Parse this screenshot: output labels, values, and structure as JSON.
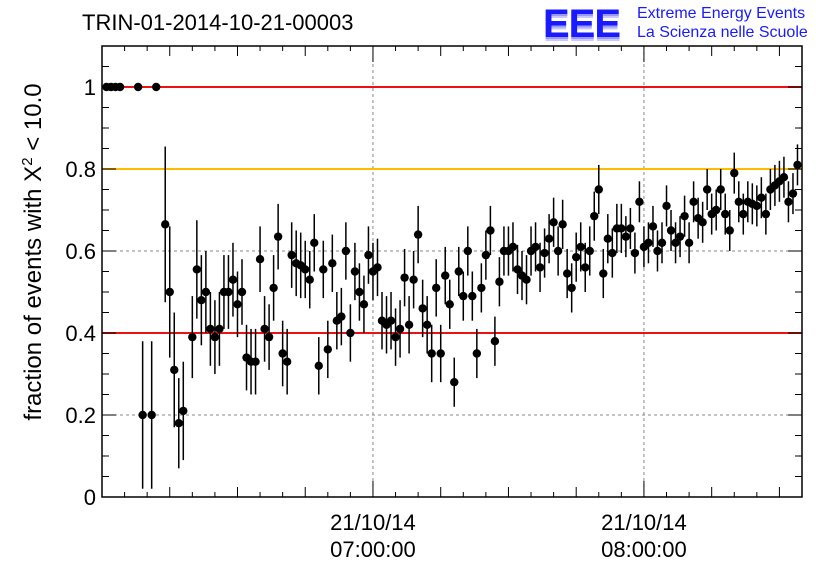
{
  "header": {
    "run_id": "TRIN-01-2014-10-21-00003",
    "logo_mark": "EEE",
    "logo_line1": "Extreme Energy Events",
    "logo_line2": "La Scienza nelle Scuole"
  },
  "axes": {
    "ylabel_prefix": "fraction of events with ",
    "ylabel_chi": "X",
    "ylabel_exp": "2",
    "ylabel_suffix": " < 10.0"
  },
  "colors": {
    "red_line": "#ee1111",
    "yellow_line": "#ffbb00",
    "points": "#000000",
    "logo_blue": "#1a1aff",
    "grid": "#888888"
  },
  "chart_data": {
    "type": "scatter",
    "title": "TRIN-01-2014-10-21-00003",
    "ylabel": "fraction of events with X^2 < 10.0",
    "xlabel": "",
    "x_format": "time (dd/mm/yy hh:mm:ss)",
    "xlim": [
      "21/10/14 06:00:00",
      "21/10/14 08:35:00"
    ],
    "ylim": [
      0,
      1.1
    ],
    "yticks": [
      0,
      0.2,
      0.4,
      0.6,
      0.8,
      1
    ],
    "ytick_labels": [
      "0",
      "0.2",
      "0.4",
      "0.6",
      "0.8",
      "1"
    ],
    "xtick_labels": [
      {
        "date": "21/10/14",
        "time": "07:00:00",
        "at": "21/10/14 07:00:00"
      },
      {
        "date": "21/10/14",
        "time": "08:00:00",
        "at": "21/10/14 08:00:00"
      }
    ],
    "grid": true,
    "reference_lines": [
      {
        "y": 1.0,
        "color": "red"
      },
      {
        "y": 0.8,
        "color": "yellow"
      },
      {
        "y": 0.4,
        "color": "red"
      }
    ],
    "points": [
      [
        "06:01:00",
        1.0,
        0
      ],
      [
        "06:02:00",
        1.0,
        0
      ],
      [
        "06:03:00",
        1.0,
        0
      ],
      [
        "06:04:00",
        1.0,
        0
      ],
      [
        "06:08:00",
        1.0,
        0
      ],
      [
        "06:12:00",
        1.0,
        0
      ],
      [
        "06:09:00",
        0.2,
        0.18
      ],
      [
        "06:11:00",
        0.2,
        0.18
      ],
      [
        "06:14:00",
        0.665,
        0.19
      ],
      [
        "06:15:00",
        0.5,
        0.16
      ],
      [
        "06:16:00",
        0.31,
        0.14
      ],
      [
        "06:17:00",
        0.18,
        0.11
      ],
      [
        "06:18:00",
        0.21,
        0.12
      ],
      [
        "06:20:00",
        0.39,
        0.1
      ],
      [
        "06:21:00",
        0.555,
        0.12
      ],
      [
        "06:22:00",
        0.48,
        0.11
      ],
      [
        "06:23:00",
        0.5,
        0.1
      ],
      [
        "06:24:00",
        0.41,
        0.09
      ],
      [
        "06:25:00",
        0.39,
        0.09
      ],
      [
        "06:26:00",
        0.41,
        0.09
      ],
      [
        "06:27:00",
        0.5,
        0.09
      ],
      [
        "06:28:00",
        0.5,
        0.09
      ],
      [
        "06:29:00",
        0.53,
        0.09
      ],
      [
        "06:30:00",
        0.47,
        0.08
      ],
      [
        "06:31:00",
        0.5,
        0.08
      ],
      [
        "06:32:00",
        0.34,
        0.08
      ],
      [
        "06:33:00",
        0.33,
        0.08
      ],
      [
        "06:34:00",
        0.33,
        0.08
      ],
      [
        "06:35:00",
        0.58,
        0.08
      ],
      [
        "06:36:00",
        0.41,
        0.08
      ],
      [
        "06:37:00",
        0.39,
        0.08
      ],
      [
        "06:38:00",
        0.51,
        0.08
      ],
      [
        "06:39:00",
        0.635,
        0.08
      ],
      [
        "06:40:00",
        0.35,
        0.08
      ],
      [
        "06:41:00",
        0.33,
        0.08
      ],
      [
        "06:42:00",
        0.59,
        0.08
      ],
      [
        "06:43:00",
        0.57,
        0.08
      ],
      [
        "06:44:00",
        0.565,
        0.08
      ],
      [
        "06:45:00",
        0.555,
        0.07
      ],
      [
        "06:46:00",
        0.53,
        0.07
      ],
      [
        "06:47:00",
        0.62,
        0.07
      ],
      [
        "06:48:00",
        0.32,
        0.07
      ],
      [
        "06:49:00",
        0.555,
        0.07
      ],
      [
        "06:50:00",
        0.36,
        0.07
      ],
      [
        "06:51:00",
        0.57,
        0.07
      ],
      [
        "06:52:00",
        0.43,
        0.07
      ],
      [
        "06:53:00",
        0.44,
        0.07
      ],
      [
        "06:54:00",
        0.6,
        0.07
      ],
      [
        "06:55:00",
        0.4,
        0.07
      ],
      [
        "06:56:00",
        0.55,
        0.07
      ],
      [
        "06:57:00",
        0.5,
        0.07
      ],
      [
        "06:58:00",
        0.47,
        0.07
      ],
      [
        "06:59:00",
        0.59,
        0.07
      ],
      [
        "07:00:00",
        0.55,
        0.07
      ],
      [
        "07:01:00",
        0.56,
        0.07
      ],
      [
        "07:02:00",
        0.43,
        0.07
      ],
      [
        "07:03:00",
        0.42,
        0.07
      ],
      [
        "07:04:00",
        0.43,
        0.07
      ],
      [
        "07:05:00",
        0.39,
        0.07
      ],
      [
        "07:06:00",
        0.41,
        0.07
      ],
      [
        "07:07:00",
        0.535,
        0.07
      ],
      [
        "07:08:00",
        0.42,
        0.07
      ],
      [
        "07:09:00",
        0.53,
        0.07
      ],
      [
        "07:10:00",
        0.64,
        0.07
      ],
      [
        "07:11:00",
        0.46,
        0.07
      ],
      [
        "07:12:00",
        0.42,
        0.07
      ],
      [
        "07:13:00",
        0.35,
        0.07
      ],
      [
        "07:14:00",
        0.51,
        0.07
      ],
      [
        "07:15:00",
        0.35,
        0.07
      ],
      [
        "07:16:00",
        0.54,
        0.07
      ],
      [
        "07:17:00",
        0.47,
        0.06
      ],
      [
        "07:18:00",
        0.28,
        0.06
      ],
      [
        "07:19:00",
        0.55,
        0.06
      ],
      [
        "07:20:00",
        0.49,
        0.06
      ],
      [
        "07:21:00",
        0.6,
        0.06
      ],
      [
        "07:22:00",
        0.49,
        0.06
      ],
      [
        "07:23:00",
        0.35,
        0.06
      ],
      [
        "07:24:00",
        0.51,
        0.06
      ],
      [
        "07:25:00",
        0.59,
        0.06
      ],
      [
        "07:26:00",
        0.65,
        0.06
      ],
      [
        "07:27:00",
        0.38,
        0.06
      ],
      [
        "07:28:00",
        0.525,
        0.06
      ],
      [
        "07:29:00",
        0.6,
        0.06
      ],
      [
        "07:30:00",
        0.6,
        0.06
      ],
      [
        "07:31:00",
        0.61,
        0.06
      ],
      [
        "07:32:00",
        0.555,
        0.06
      ],
      [
        "07:33:00",
        0.54,
        0.06
      ],
      [
        "07:34:00",
        0.53,
        0.06
      ],
      [
        "07:35:00",
        0.6,
        0.06
      ],
      [
        "07:36:00",
        0.61,
        0.06
      ],
      [
        "07:37:00",
        0.56,
        0.06
      ],
      [
        "07:38:00",
        0.595,
        0.06
      ],
      [
        "07:39:00",
        0.63,
        0.06
      ],
      [
        "07:40:00",
        0.67,
        0.06
      ],
      [
        "07:41:00",
        0.6,
        0.06
      ],
      [
        "07:42:00",
        0.665,
        0.06
      ],
      [
        "07:43:00",
        0.545,
        0.06
      ],
      [
        "07:44:00",
        0.51,
        0.06
      ],
      [
        "07:45:00",
        0.585,
        0.06
      ],
      [
        "07:46:00",
        0.61,
        0.06
      ],
      [
        "07:47:00",
        0.56,
        0.06
      ],
      [
        "07:48:00",
        0.6,
        0.06
      ],
      [
        "07:49:00",
        0.685,
        0.06
      ],
      [
        "07:50:00",
        0.75,
        0.06
      ],
      [
        "07:51:00",
        0.545,
        0.06
      ],
      [
        "07:52:00",
        0.63,
        0.06
      ],
      [
        "07:53:00",
        0.595,
        0.06
      ],
      [
        "07:54:00",
        0.655,
        0.06
      ],
      [
        "07:55:00",
        0.655,
        0.06
      ],
      [
        "07:56:00",
        0.635,
        0.05
      ],
      [
        "07:57:00",
        0.655,
        0.05
      ],
      [
        "07:58:00",
        0.595,
        0.05
      ],
      [
        "07:59:00",
        0.72,
        0.05
      ],
      [
        "08:00:00",
        0.61,
        0.05
      ],
      [
        "08:01:00",
        0.62,
        0.05
      ],
      [
        "08:02:00",
        0.66,
        0.05
      ],
      [
        "08:03:00",
        0.6,
        0.05
      ],
      [
        "08:04:00",
        0.62,
        0.05
      ],
      [
        "08:05:00",
        0.71,
        0.05
      ],
      [
        "08:06:00",
        0.65,
        0.05
      ],
      [
        "08:07:00",
        0.62,
        0.05
      ],
      [
        "08:08:00",
        0.635,
        0.05
      ],
      [
        "08:09:00",
        0.685,
        0.05
      ],
      [
        "08:10:00",
        0.62,
        0.05
      ],
      [
        "08:11:00",
        0.72,
        0.05
      ],
      [
        "08:12:00",
        0.68,
        0.05
      ],
      [
        "08:13:00",
        0.67,
        0.05
      ],
      [
        "08:14:00",
        0.75,
        0.05
      ],
      [
        "08:15:00",
        0.69,
        0.05
      ],
      [
        "08:16:00",
        0.7,
        0.05
      ],
      [
        "08:17:00",
        0.75,
        0.05
      ],
      [
        "08:18:00",
        0.69,
        0.05
      ],
      [
        "08:19:00",
        0.65,
        0.05
      ],
      [
        "08:20:00",
        0.79,
        0.05
      ],
      [
        "08:21:00",
        0.72,
        0.05
      ],
      [
        "08:22:00",
        0.69,
        0.05
      ],
      [
        "08:23:00",
        0.72,
        0.05
      ],
      [
        "08:24:00",
        0.715,
        0.05
      ],
      [
        "08:25:00",
        0.71,
        0.05
      ],
      [
        "08:26:00",
        0.73,
        0.05
      ],
      [
        "08:27:00",
        0.69,
        0.05
      ],
      [
        "08:28:00",
        0.75,
        0.05
      ],
      [
        "08:29:00",
        0.76,
        0.05
      ],
      [
        "08:30:00",
        0.77,
        0.05
      ],
      [
        "08:31:00",
        0.78,
        0.05
      ],
      [
        "08:32:00",
        0.72,
        0.05
      ],
      [
        "08:33:00",
        0.74,
        0.05
      ],
      [
        "08:34:00",
        0.81,
        0.05
      ]
    ]
  }
}
